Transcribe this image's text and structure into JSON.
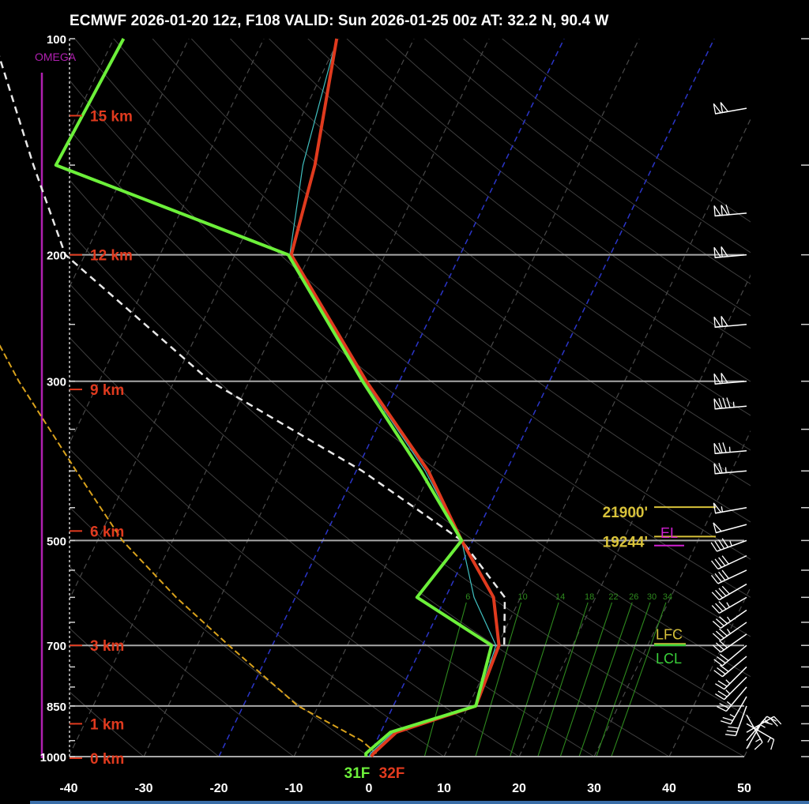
{
  "title": "ECMWF 2026-01-20 12z, F108  VALID: Sun 2026-01-25 00z  AT: 32.2 N, 90.4 W",
  "omega_label": "OMEGA",
  "colors": {
    "temperature": "#e03a1e",
    "dewpoint": "#6cf03a",
    "parcel": "#e8e8e8",
    "isobar": "#a8a8a8",
    "isotherm": "#505050",
    "zero_isotherm": "#2b35c8",
    "height_label": "#e03a1e",
    "omega": "#b020b0",
    "freezing_level": "#d9a21c",
    "mixing_ratio": "#2e8a1e",
    "wetbulb": "#40c0c0",
    "level_label": "#d8c23a",
    "el": "#d020d0",
    "lcl": "#3ad03a"
  },
  "chart_data": {
    "type": "skew-t",
    "x_label": "",
    "y_label": "",
    "temperature_ticks": [
      -40,
      -30,
      -20,
      -10,
      0,
      10,
      20,
      30,
      40,
      50
    ],
    "pressure_labels": [
      100,
      200,
      300,
      500,
      700,
      850,
      1000
    ],
    "pressure_ticks": [
      100,
      150,
      200,
      250,
      300,
      350,
      400,
      450,
      500,
      550,
      600,
      650,
      700,
      750,
      800,
      850,
      900,
      950,
      1000
    ],
    "isobars_drawn": [
      200,
      300,
      500,
      700,
      850,
      1000
    ],
    "height_labels": [
      {
        "text": "15 km",
        "p": 128
      },
      {
        "text": "12 km",
        "p": 200
      },
      {
        "text": "9 km",
        "p": 308
      },
      {
        "text": "6 km",
        "p": 485
      },
      {
        "text": "3 km",
        "p": 700
      },
      {
        "text": "1 km",
        "p": 900
      },
      {
        "text": "0 km",
        "p": 1005
      }
    ],
    "temperature_profile": [
      {
        "p": 100,
        "t": -50.3
      },
      {
        "p": 150,
        "t": -45.1
      },
      {
        "p": 200,
        "t": -42.5
      },
      {
        "p": 300,
        "t": -24.4
      },
      {
        "p": 400,
        "t": -10.4
      },
      {
        "p": 500,
        "t": -1.5
      },
      {
        "p": 600,
        "t": 6.4
      },
      {
        "p": 700,
        "t": 10.2
      },
      {
        "p": 850,
        "t": 11.0
      },
      {
        "p": 925,
        "t": 2.1
      },
      {
        "p": 990,
        "t": 0.4
      },
      {
        "p": 1000,
        "t": 0.3
      }
    ],
    "dewpoint_profile": [
      {
        "p": 100,
        "t": -78.7
      },
      {
        "p": 150,
        "t": -79.6
      },
      {
        "p": 200,
        "t": -42.9
      },
      {
        "p": 300,
        "t": -24.9
      },
      {
        "p": 400,
        "t": -11.4
      },
      {
        "p": 500,
        "t": -1.5
      },
      {
        "p": 600,
        "t": -3.8
      },
      {
        "p": 700,
        "t": 9.2
      },
      {
        "p": 850,
        "t": 11.0
      },
      {
        "p": 925,
        "t": 1.3
      },
      {
        "p": 990,
        "t": -0.6
      },
      {
        "p": 1000,
        "t": -0.4
      }
    ],
    "wetbulb_profile": [
      {
        "p": 100,
        "t": -50.3
      },
      {
        "p": 150,
        "t": -46.7
      },
      {
        "p": 200,
        "t": -42.7
      },
      {
        "p": 300,
        "t": -24.6
      },
      {
        "p": 400,
        "t": -10.8
      },
      {
        "p": 500,
        "t": -1.5
      },
      {
        "p": 600,
        "t": 3.8
      },
      {
        "p": 700,
        "t": 9.8
      },
      {
        "p": 850,
        "t": 11.0
      },
      {
        "p": 925,
        "t": 1.7
      },
      {
        "p": 990,
        "t": 0.0
      },
      {
        "p": 1000,
        "t": 0.1
      }
    ],
    "parcel_profile": [
      {
        "p": 100,
        "t": -96.0
      },
      {
        "p": 150,
        "t": -82.6
      },
      {
        "p": 200,
        "t": -72.6
      },
      {
        "p": 300,
        "t": -45.2
      },
      {
        "p": 400,
        "t": -19.2
      },
      {
        "p": 500,
        "t": -1.5
      },
      {
        "p": 600,
        "t": 7.9
      },
      {
        "p": 700,
        "t": 10.9
      }
    ],
    "freezing_curve": [
      {
        "p": 240,
        "t": -80.1
      },
      {
        "p": 300,
        "t": -70.7
      },
      {
        "p": 400,
        "t": -57.3
      },
      {
        "p": 500,
        "t": -46.7
      },
      {
        "p": 600,
        "t": -35.9
      },
      {
        "p": 700,
        "t": -25.8
      },
      {
        "p": 850,
        "t": -12.7
      },
      {
        "p": 950,
        "t": -2.0
      },
      {
        "p": 990,
        "t": 0.8
      }
    ],
    "mixing_ratio_labels": [
      "6",
      "10",
      "14",
      "18",
      "22",
      "26",
      "30",
      "34"
    ],
    "mixing_ratio_lines": [
      {
        "label": "6",
        "t_top": 3.1,
        "t_bottom": 7.4
      },
      {
        "label": "10",
        "t_top": 10.4,
        "t_bottom": 14.2
      },
      {
        "label": "14",
        "t_top": 15.4,
        "t_bottom": 18.8
      },
      {
        "label": "18",
        "t_top": 19.3,
        "t_bottom": 22.5
      },
      {
        "label": "22",
        "t_top": 22.5,
        "t_bottom": 25.5
      },
      {
        "label": "26",
        "t_top": 25.2,
        "t_bottom": 28.0
      },
      {
        "label": "30",
        "t_top": 27.6,
        "t_bottom": 30.3
      },
      {
        "label": "34",
        "t_top": 29.7,
        "t_bottom": 32.3
      }
    ],
    "levels": [
      {
        "text": "21900'",
        "p": 455,
        "kind": "height"
      },
      {
        "text": "19244'",
        "p": 500,
        "kind": "height"
      },
      {
        "text": "EL",
        "p": 493,
        "kind": "el"
      },
      {
        "text": "LFC",
        "p": 690,
        "kind": "lfc"
      },
      {
        "text": "LCL",
        "p": 712,
        "kind": "lcl"
      }
    ],
    "surface_dewpoint_label": "31F",
    "surface_temperature_label": "32F",
    "wind_barbs": [
      {
        "p": 125,
        "dir": 260,
        "kt": 100
      },
      {
        "p": 175,
        "dir": 265,
        "kt": 110
      },
      {
        "p": 200,
        "dir": 265,
        "kt": 100
      },
      {
        "p": 250,
        "dir": 265,
        "kt": 100
      },
      {
        "p": 300,
        "dir": 265,
        "kt": 100
      },
      {
        "p": 325,
        "dir": 265,
        "kt": 85
      },
      {
        "p": 375,
        "dir": 265,
        "kt": 75
      },
      {
        "p": 400,
        "dir": 265,
        "kt": 65
      },
      {
        "p": 450,
        "dir": 260,
        "kt": 55
      },
      {
        "p": 475,
        "dir": 255,
        "kt": 50
      },
      {
        "p": 500,
        "dir": 250,
        "kt": 45
      },
      {
        "p": 525,
        "dir": 245,
        "kt": 40
      },
      {
        "p": 550,
        "dir": 245,
        "kt": 40
      },
      {
        "p": 575,
        "dir": 240,
        "kt": 40
      },
      {
        "p": 600,
        "dir": 240,
        "kt": 35
      },
      {
        "p": 625,
        "dir": 235,
        "kt": 35
      },
      {
        "p": 650,
        "dir": 235,
        "kt": 35
      },
      {
        "p": 675,
        "dir": 235,
        "kt": 30
      },
      {
        "p": 700,
        "dir": 230,
        "kt": 30
      },
      {
        "p": 725,
        "dir": 230,
        "kt": 30
      },
      {
        "p": 750,
        "dir": 225,
        "kt": 25
      },
      {
        "p": 775,
        "dir": 225,
        "kt": 25
      },
      {
        "p": 800,
        "dir": 220,
        "kt": 25
      },
      {
        "p": 825,
        "dir": 210,
        "kt": 25
      },
      {
        "p": 850,
        "dir": 200,
        "kt": 30
      },
      {
        "p": 875,
        "dir": 150,
        "kt": 15
      },
      {
        "p": 900,
        "dir": 120,
        "kt": 15
      },
      {
        "p": 925,
        "dir": 60,
        "kt": 20
      },
      {
        "p": 950,
        "dir": 40,
        "kt": 15
      },
      {
        "p": 975,
        "dir": 30,
        "kt": 15
      }
    ]
  }
}
